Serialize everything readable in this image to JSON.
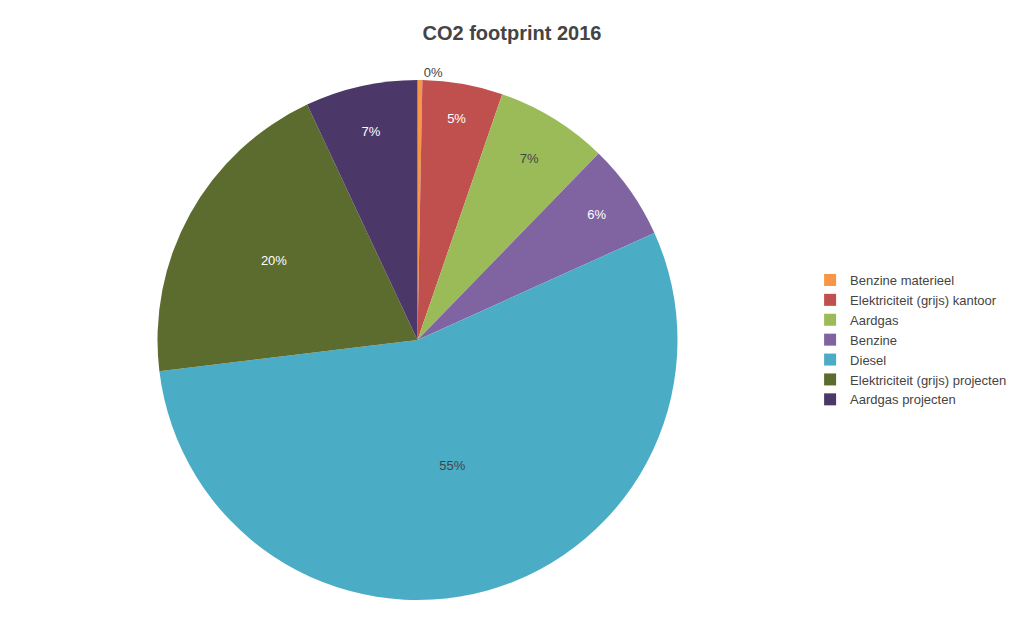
{
  "chart_data": {
    "type": "pie",
    "title": "CO2 footprint 2016",
    "categories": [
      "Benzine materieel",
      "Elektriciteit (grijs) kantoor",
      "Aardgas",
      "Benzine",
      "Diesel",
      "Elektriciteit (grijs) projecten",
      "Aardgas projecten"
    ],
    "values": [
      0.3,
      5,
      7,
      6,
      55,
      20,
      7
    ],
    "value_labels": [
      "0%",
      "5%",
      "7%",
      "6%",
      "55%",
      "20%",
      "7%"
    ],
    "colors": [
      "#F79646",
      "#C0504D",
      "#9BBB59",
      "#8064A2",
      "#4BACC6",
      "#5C6C2E",
      "#4B3869"
    ],
    "data_labels": true,
    "legend": "right"
  }
}
